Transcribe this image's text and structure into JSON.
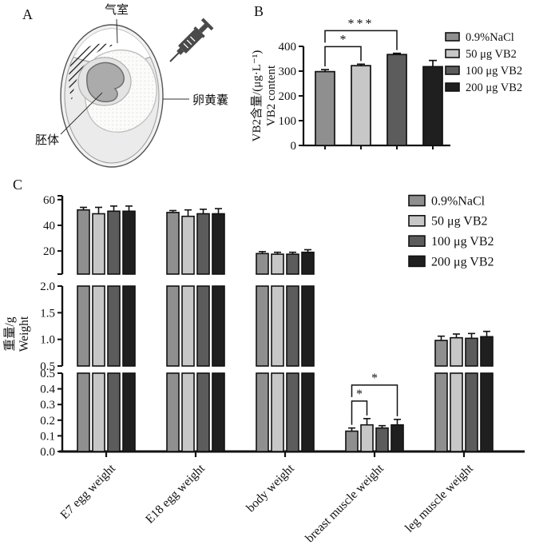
{
  "panelA": {
    "label": "A",
    "annotations": {
      "air_chamber": "气室",
      "yolk_sac": "卵黄囊",
      "embryo": "胚体"
    }
  },
  "series_colors": [
    "#8f8f8f",
    "#c7c7c7",
    "#5c5c5c",
    "#1f1f1f"
  ],
  "chart_data": [
    {
      "panel": "B",
      "type": "bar",
      "title": "",
      "ylabel_lines": [
        "VB2含量/(μg·L⁻¹)",
        "VB2 content"
      ],
      "categories": [
        "0.9%NaCl",
        "50 μg VB2",
        "100 μg VB2",
        "200 μg VB2"
      ],
      "values": [
        298,
        322,
        367,
        318
      ],
      "errors": [
        8,
        6,
        5,
        25
      ],
      "ylim": [
        0,
        400
      ],
      "yticks": [
        "0",
        "100",
        "200",
        "300",
        "400"
      ],
      "grid": false,
      "legend_position": "right",
      "legend": [
        {
          "label": "0.9%NaCl",
          "color": "#8f8f8f"
        },
        {
          "label": "50 μg VB2",
          "color": "#c7c7c7"
        },
        {
          "label": "100 μg VB2",
          "color": "#5c5c5c"
        },
        {
          "label": "200 μg VB2",
          "color": "#1f1f1f"
        }
      ],
      "significance": [
        {
          "from": 0,
          "to": 1,
          "label": "*"
        },
        {
          "from": 0,
          "to": 2,
          "label": "***"
        }
      ]
    },
    {
      "panel": "C",
      "type": "grouped-bar-broken-axis",
      "ylabel_lines": [
        "重量/g",
        "Weight"
      ],
      "categories": [
        "E7 egg weight",
        "E18 egg weight",
        "body weight",
        "breast muscle weight",
        "leg muscle weight"
      ],
      "series": [
        {
          "name": "0.9%NaCl",
          "color": "#8f8f8f",
          "values": [
            52,
            50,
            18,
            0.13,
            0.98
          ],
          "errors": [
            2,
            1.5,
            1.5,
            0.02,
            0.08
          ]
        },
        {
          "name": "50 μg VB2",
          "color": "#c7c7c7",
          "values": [
            49,
            47,
            17.5,
            0.17,
            1.03
          ],
          "errors": [
            5,
            5,
            1.5,
            0.04,
            0.07
          ]
        },
        {
          "name": "100 μg VB2",
          "color": "#5c5c5c",
          "values": [
            51,
            49,
            17.5,
            0.15,
            1.02
          ],
          "errors": [
            4,
            3.5,
            1.5,
            0.015,
            0.09
          ]
        },
        {
          "name": "200 μg VB2",
          "color": "#1f1f1f",
          "values": [
            51,
            49,
            19,
            0.17,
            1.05
          ],
          "errors": [
            4,
            4,
            2,
            0.035,
            0.1
          ]
        }
      ],
      "axis_segments": [
        {
          "lo": 2,
          "hi": 63,
          "ticks": [
            {
              "v": 20,
              "label": "20"
            },
            {
              "v": 40,
              "label": "40"
            },
            {
              "v": 60,
              "label": "60"
            }
          ]
        },
        {
          "lo": 0.5,
          "hi": 2.0,
          "ticks": [
            {
              "v": 0.5,
              "label": "0.5"
            },
            {
              "v": 1.0,
              "label": "1.0"
            },
            {
              "v": 1.5,
              "label": "1.5"
            },
            {
              "v": 2.0,
              "label": "2.0"
            }
          ]
        },
        {
          "lo": 0,
          "hi": 0.5,
          "ticks": [
            {
              "v": 0,
              "label": "0.0"
            },
            {
              "v": 0.1,
              "label": "0.1"
            },
            {
              "v": 0.2,
              "label": "0.2"
            },
            {
              "v": 0.3,
              "label": "0.3"
            },
            {
              "v": 0.4,
              "label": "0.4"
            },
            {
              "v": 0.5,
              "label": "0.5"
            }
          ]
        }
      ],
      "legend": [
        {
          "label": "0.9%NaCl",
          "color": "#8f8f8f"
        },
        {
          "label": "50 μg VB2",
          "color": "#c7c7c7"
        },
        {
          "label": "100 μg VB2",
          "color": "#5c5c5c"
        },
        {
          "label": "200 μg VB2",
          "color": "#1f1f1f"
        }
      ],
      "significance": [
        {
          "category": 3,
          "from": 0,
          "to": 1,
          "label": "*"
        },
        {
          "category": 3,
          "from": 0,
          "to": 3,
          "label": "*"
        }
      ]
    }
  ]
}
